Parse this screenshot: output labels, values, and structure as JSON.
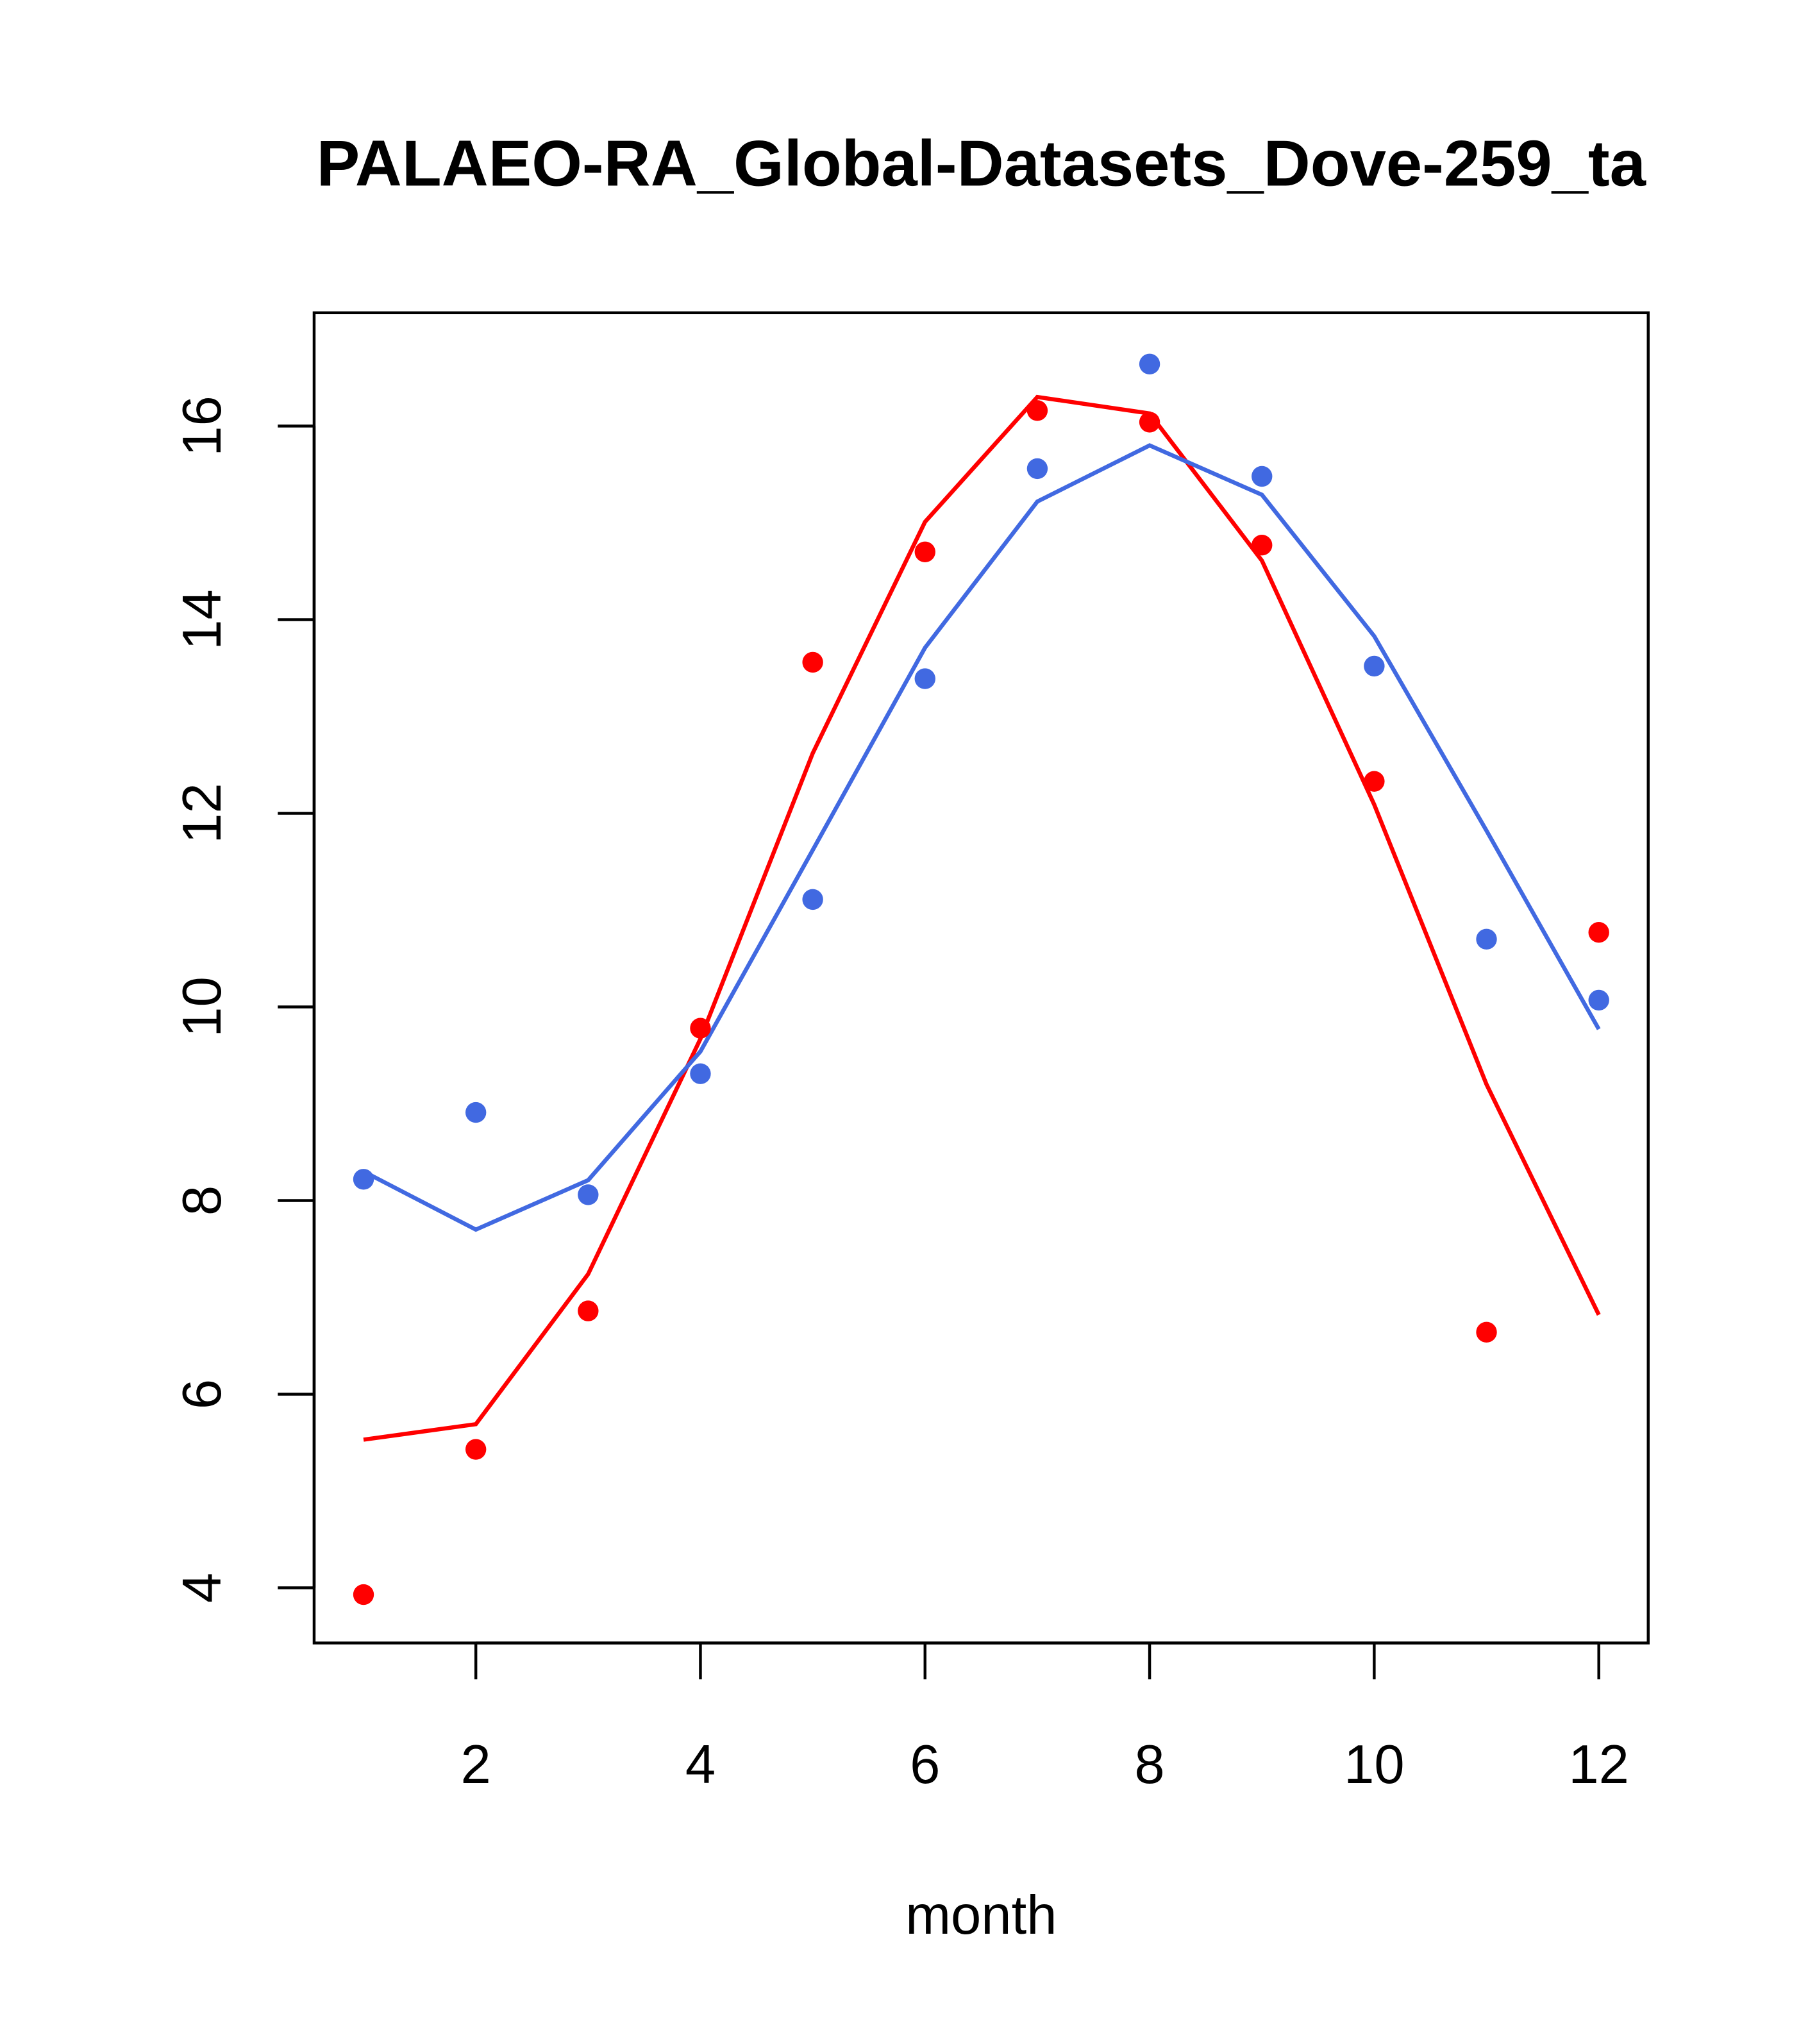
{
  "chart_data": {
    "type": "line",
    "title": "PALAEO-RA_Global-Datasets_Dove-259_ta",
    "xlabel": "month",
    "ylabel": "",
    "xlim": [
      0.56,
      12.44
    ],
    "ylim": [
      3.43,
      17.17
    ],
    "xticks": [
      2,
      4,
      6,
      8,
      10,
      12
    ],
    "yticks": [
      4,
      6,
      8,
      10,
      12,
      14,
      16
    ],
    "x": [
      1,
      2,
      3,
      4,
      5,
      6,
      7,
      8,
      9,
      10,
      11,
      12
    ],
    "series": [
      {
        "name": "red points",
        "kind": "points",
        "color": "#ff0000",
        "values": [
          3.93,
          5.43,
          6.86,
          9.78,
          13.56,
          14.7,
          16.16,
          16.04,
          14.77,
          12.33,
          6.64,
          10.77
        ]
      },
      {
        "name": "blue points",
        "kind": "points",
        "color": "#4169e1",
        "values": [
          8.22,
          8.91,
          8.06,
          9.31,
          11.11,
          13.39,
          15.56,
          16.64,
          15.48,
          13.52,
          10.7,
          10.07
        ]
      },
      {
        "name": "red line",
        "kind": "line",
        "color": "#ff0000",
        "values": [
          5.53,
          5.69,
          7.24,
          9.67,
          12.62,
          15.01,
          16.3,
          16.13,
          14.61,
          12.09,
          9.2,
          6.82
        ]
      },
      {
        "name": "blue line",
        "kind": "line",
        "color": "#4169e1",
        "values": [
          8.3,
          7.7,
          8.21,
          9.54,
          11.62,
          13.71,
          15.22,
          15.8,
          15.29,
          13.83,
          11.82,
          9.77
        ]
      }
    ]
  }
}
